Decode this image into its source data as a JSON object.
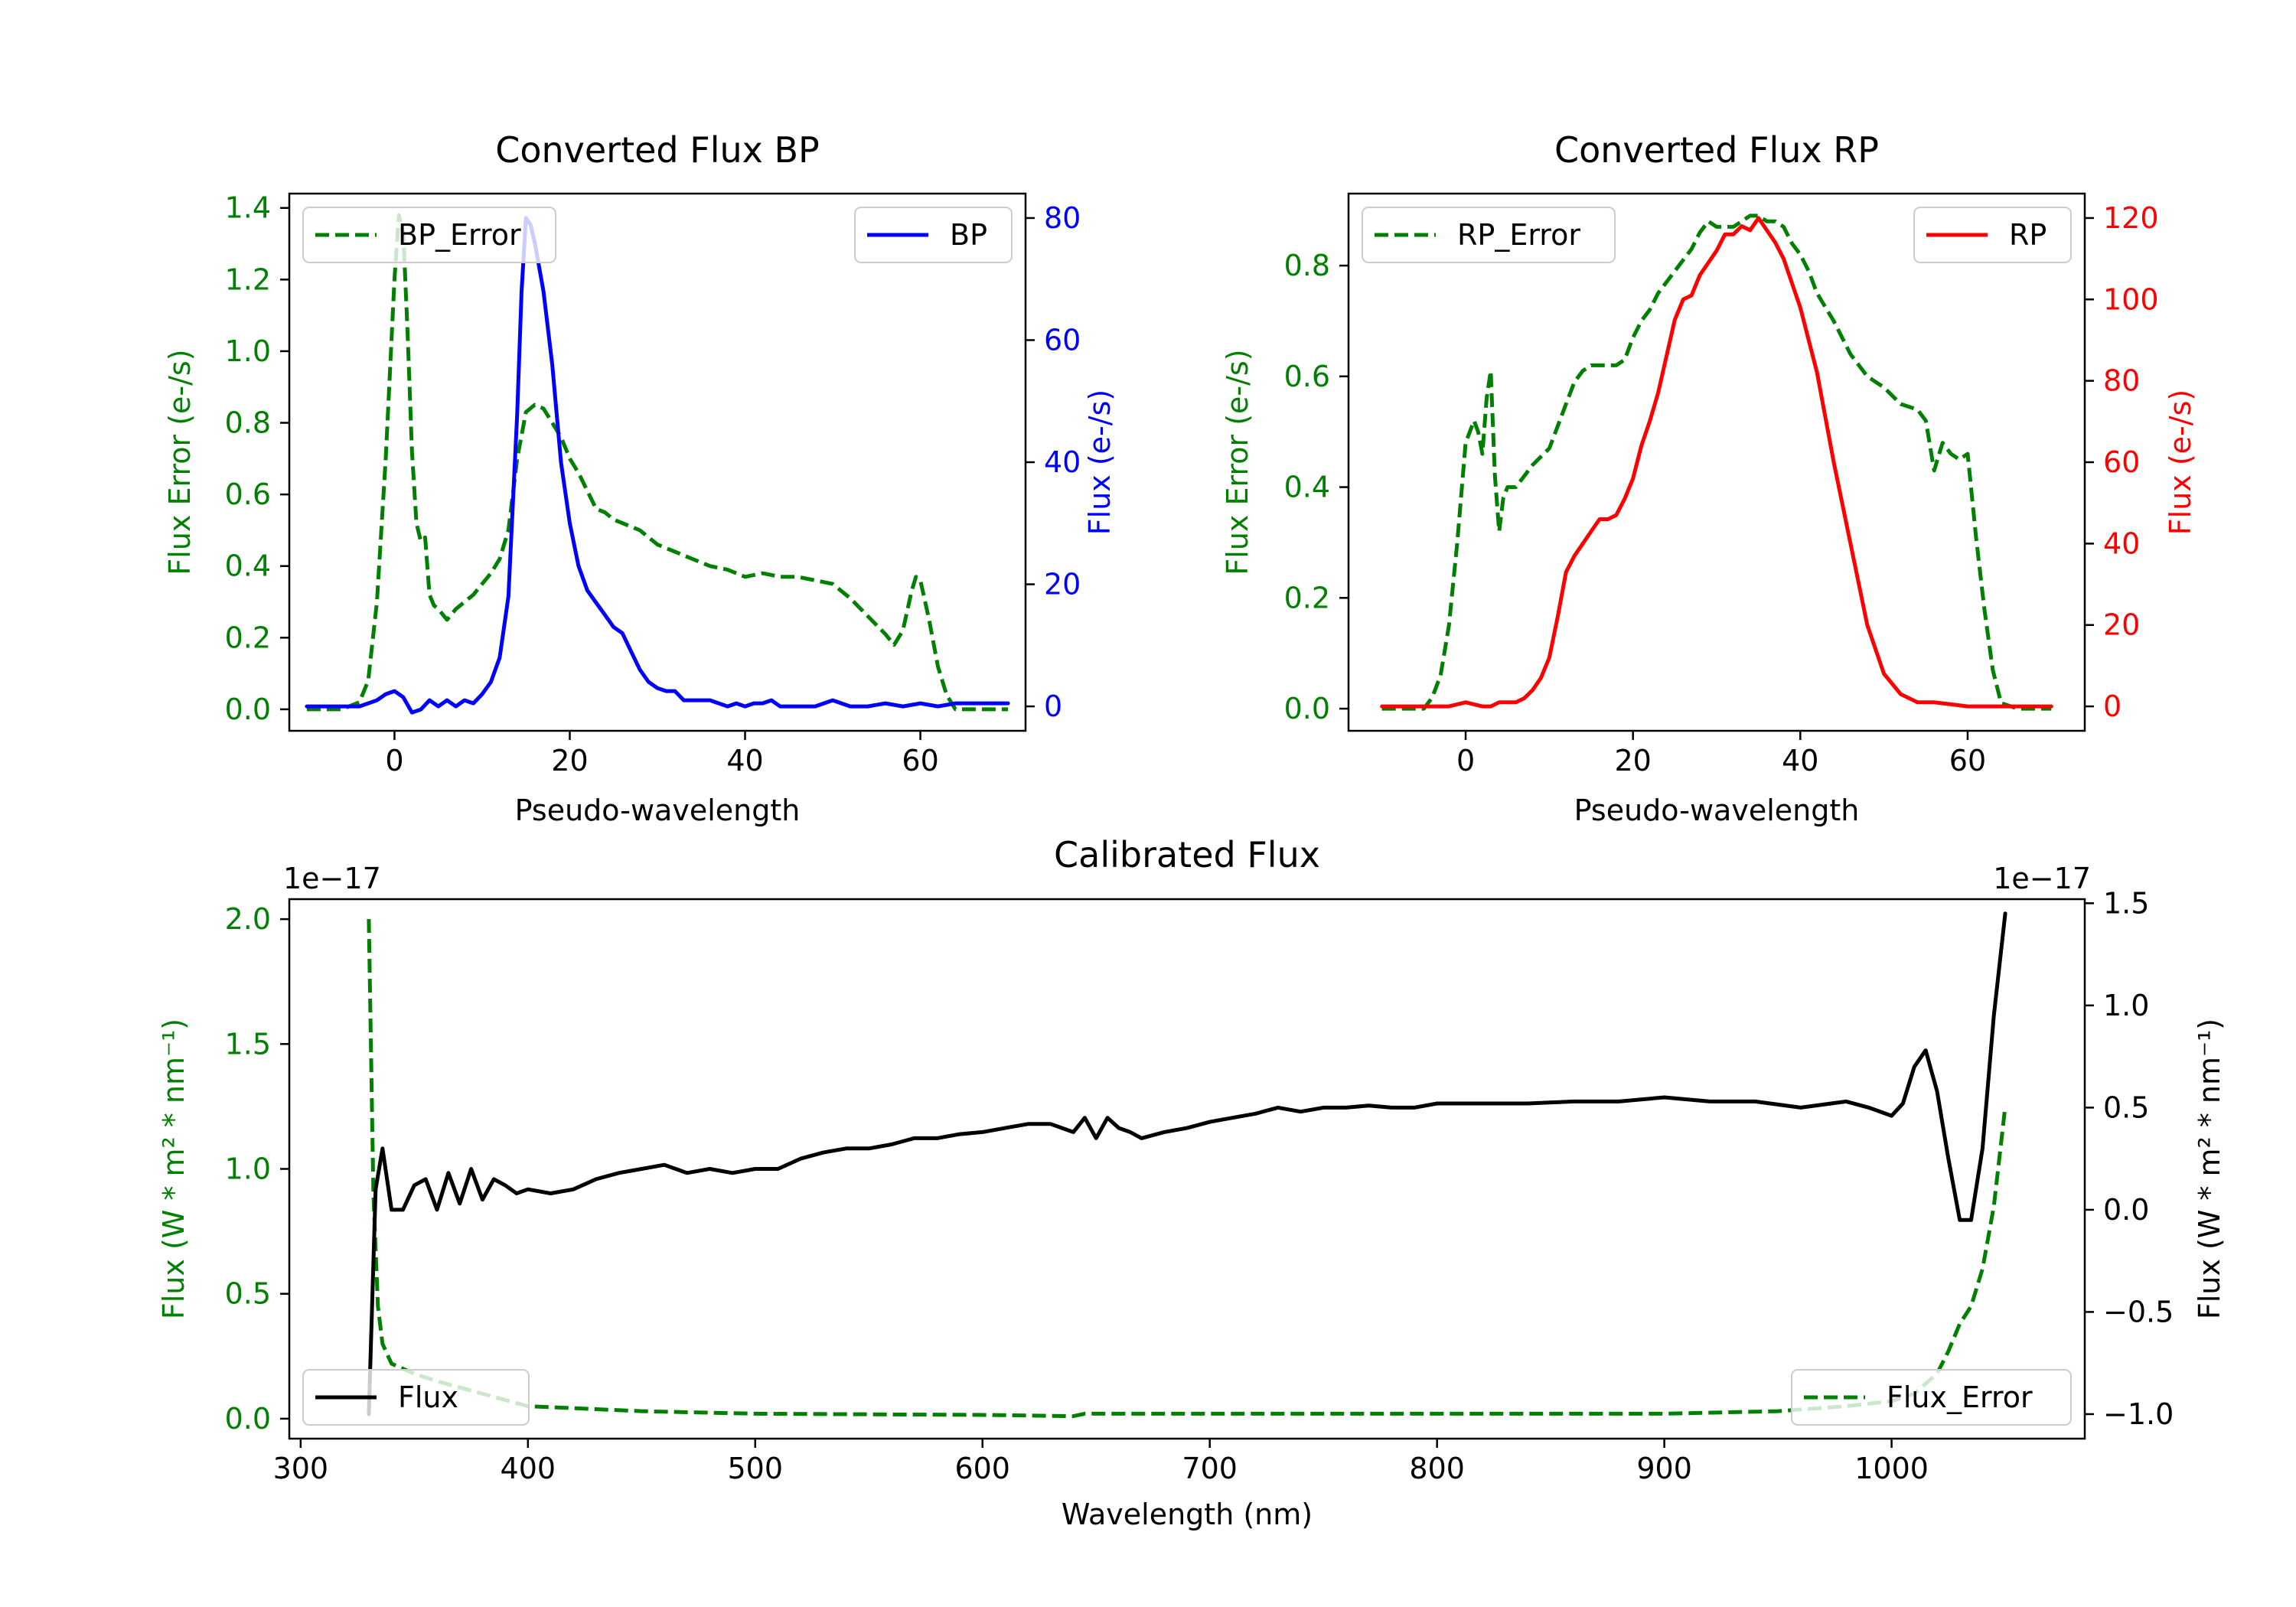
{
  "chart_data": [
    {
      "type": "line",
      "title": "Converted Flux BP",
      "xlabel": "Pseudo-wavelength",
      "ylabel_left": "Flux Error (e-/s)",
      "ylabel_right": "Flux (e-/s)",
      "xlim": [
        -12,
        72
      ],
      "ylim_left": [
        -0.06,
        1.44
      ],
      "ylim_right": [
        -4,
        84
      ],
      "xticks": [
        0,
        20,
        40,
        60
      ],
      "yticks_left": [
        0.0,
        0.2,
        0.4,
        0.6,
        0.8,
        1.0,
        1.2,
        1.4
      ],
      "yticks_right": [
        0,
        20,
        40,
        60,
        80
      ],
      "left_color": "#008000",
      "right_color": "#0000ff",
      "series": [
        {
          "name": "BP_Error",
          "axis": "left",
          "style": "dashed",
          "color": "#008000",
          "x": [
            -10,
            -6,
            -4,
            -3,
            -2,
            -1,
            0,
            0.5,
            1,
            1.5,
            2,
            2.5,
            3,
            3.5,
            4,
            4.5,
            5,
            6,
            7,
            8,
            9,
            10,
            11,
            12,
            13,
            14,
            15,
            16,
            17,
            18,
            19,
            20,
            21,
            22,
            23,
            24,
            25,
            26,
            28,
            30,
            32,
            34,
            36,
            38,
            40,
            42,
            44,
            46,
            48,
            50,
            52,
            54,
            56,
            57,
            58,
            59,
            59.5,
            60,
            61,
            62,
            63,
            64,
            66,
            70
          ],
          "y": [
            0.0,
            0.0,
            0.02,
            0.08,
            0.3,
            0.7,
            1.2,
            1.38,
            1.33,
            1.05,
            0.72,
            0.52,
            0.47,
            0.48,
            0.32,
            0.29,
            0.28,
            0.25,
            0.28,
            0.3,
            0.32,
            0.35,
            0.38,
            0.42,
            0.5,
            0.7,
            0.83,
            0.85,
            0.84,
            0.8,
            0.76,
            0.7,
            0.66,
            0.61,
            0.56,
            0.55,
            0.53,
            0.52,
            0.5,
            0.46,
            0.44,
            0.42,
            0.4,
            0.39,
            0.37,
            0.38,
            0.37,
            0.37,
            0.36,
            0.35,
            0.31,
            0.26,
            0.21,
            0.18,
            0.22,
            0.33,
            0.37,
            0.36,
            0.25,
            0.12,
            0.04,
            0.0,
            0.0,
            0.0
          ]
        },
        {
          "name": "BP",
          "axis": "right",
          "style": "solid",
          "color": "#0000ff",
          "x": [
            -10,
            -6,
            -4,
            -2,
            -1,
            0,
            1,
            2,
            3,
            4,
            5,
            6,
            7,
            8,
            9,
            10,
            11,
            12,
            13,
            14,
            14.5,
            15,
            15.5,
            16,
            16.5,
            17,
            18,
            19,
            20,
            21,
            22,
            23,
            24,
            25,
            26,
            27,
            28,
            29,
            30,
            31,
            32,
            33,
            34,
            36,
            38,
            39,
            40,
            41,
            42,
            43,
            44,
            46,
            48,
            50,
            52,
            54,
            56,
            58,
            60,
            62,
            64,
            66,
            68,
            70
          ],
          "y": [
            0,
            0,
            0,
            1,
            2,
            2.5,
            1.5,
            -1,
            -0.5,
            1,
            0,
            1,
            0,
            1,
            0.5,
            2,
            4,
            8,
            18,
            48,
            68,
            80,
            79,
            76,
            72,
            68,
            56,
            40,
            30,
            23,
            19,
            17,
            15,
            13,
            12,
            9,
            6,
            4,
            3,
            2.5,
            2.5,
            1,
            1,
            1,
            0,
            0.5,
            0,
            0.5,
            0.5,
            1,
            0,
            0,
            0,
            1,
            0,
            0,
            0.5,
            0,
            0.5,
            0,
            0.5,
            0.5,
            0.5,
            0.5
          ]
        }
      ],
      "legend": [
        {
          "label": "BP_Error",
          "placement": "upper left"
        },
        {
          "label": "BP",
          "placement": "upper right"
        }
      ]
    },
    {
      "type": "line",
      "title": "Converted Flux RP",
      "xlabel": "Pseudo-wavelength",
      "ylabel_left": "Flux Error (e-/s)",
      "ylabel_right": "Flux (e-/s)",
      "xlim": [
        -14,
        74
      ],
      "ylim_left": [
        -0.04,
        0.93
      ],
      "ylim_right": [
        -6,
        126
      ],
      "xticks": [
        0,
        20,
        40,
        60
      ],
      "yticks_left": [
        0.0,
        0.2,
        0.4,
        0.6,
        0.8
      ],
      "yticks_right": [
        0,
        20,
        40,
        60,
        80,
        100,
        120
      ],
      "left_color": "#008000",
      "right_color": "#ff0000",
      "series": [
        {
          "name": "RP_Error",
          "axis": "left",
          "style": "dashed",
          "color": "#008000",
          "x": [
            -10,
            -5,
            -4,
            -3,
            -2,
            -1,
            0,
            1,
            1.5,
            2,
            2.5,
            3,
            3.5,
            4,
            4.5,
            5,
            6,
            7,
            8,
            10,
            12,
            13,
            14,
            15,
            16,
            18,
            19,
            20,
            21,
            22,
            23,
            24,
            25,
            26,
            27,
            28,
            29,
            30,
            32,
            33,
            34,
            35,
            36,
            37,
            38,
            39,
            40,
            41,
            42,
            44,
            46,
            48,
            50,
            52,
            54,
            55,
            56,
            57,
            58,
            59,
            60,
            61,
            62,
            63,
            64,
            66,
            70
          ],
          "y": [
            0,
            0,
            0.02,
            0.06,
            0.15,
            0.3,
            0.48,
            0.52,
            0.5,
            0.46,
            0.56,
            0.61,
            0.42,
            0.32,
            0.38,
            0.4,
            0.4,
            0.42,
            0.44,
            0.47,
            0.55,
            0.59,
            0.61,
            0.62,
            0.62,
            0.62,
            0.63,
            0.67,
            0.7,
            0.72,
            0.75,
            0.77,
            0.79,
            0.81,
            0.83,
            0.86,
            0.88,
            0.87,
            0.87,
            0.88,
            0.89,
            0.89,
            0.88,
            0.88,
            0.87,
            0.84,
            0.82,
            0.79,
            0.75,
            0.7,
            0.64,
            0.6,
            0.58,
            0.55,
            0.54,
            0.52,
            0.43,
            0.48,
            0.46,
            0.45,
            0.46,
            0.31,
            0.18,
            0.07,
            0.01,
            0,
            0
          ]
        },
        {
          "name": "RP",
          "axis": "right",
          "style": "solid",
          "color": "#ff0000",
          "x": [
            -10,
            -4,
            -2,
            0,
            1,
            2,
            3,
            4,
            5,
            6,
            7,
            8,
            9,
            10,
            11,
            12,
            13,
            14,
            15,
            16,
            17,
            18,
            19,
            20,
            21,
            22,
            23,
            24,
            25,
            26,
            27,
            28,
            29,
            30,
            31,
            32,
            33,
            34,
            35,
            36,
            37,
            38,
            40,
            42,
            44,
            46,
            48,
            50,
            52,
            54,
            56,
            58,
            60,
            62,
            64,
            66,
            70
          ],
          "y": [
            0,
            0,
            0,
            1,
            0.5,
            0,
            0,
            1,
            1,
            1,
            2,
            4,
            7,
            12,
            22,
            33,
            37,
            40,
            43,
            46,
            46,
            47,
            51,
            56,
            64,
            70,
            77,
            86,
            95,
            100,
            101,
            106,
            109,
            112,
            116,
            116,
            118,
            117,
            120,
            117,
            114,
            110,
            98,
            82,
            60,
            40,
            20,
            8,
            3,
            1,
            1,
            0.5,
            0,
            0,
            0,
            0,
            0
          ]
        }
      ],
      "legend": [
        {
          "label": "RP_Error",
          "placement": "upper left"
        },
        {
          "label": "RP",
          "placement": "upper right"
        }
      ]
    },
    {
      "type": "line",
      "title": "Calibrated Flux",
      "xlabel": "Wavelength (nm)",
      "ylabel_left": "Flux (W * m² * nm⁻¹)",
      "ylabel_right": "Flux (W * m² * nm⁻¹)",
      "offset_left": "1e−17",
      "offset_right": "1e−17",
      "xlim": [
        295,
        1085
      ],
      "ylim_left": [
        -0.08,
        2.08
      ],
      "ylim_right": [
        -1.12,
        1.52
      ],
      "xticks": [
        300,
        400,
        500,
        600,
        700,
        800,
        900,
        1000
      ],
      "yticks_left": [
        0.0,
        0.5,
        1.0,
        1.5,
        2.0
      ],
      "yticks_left_labels": [
        "0.0",
        "0.5",
        "1.0",
        "1.5",
        "2.0"
      ],
      "yticks_right": [
        -1.0,
        -0.5,
        0.0,
        0.5,
        1.0,
        1.5
      ],
      "yticks_right_labels": [
        "−1.0",
        "−0.5",
        "0.0",
        "0.5",
        "1.0",
        "1.5"
      ],
      "left_color": "#008000",
      "right_color": "#000000",
      "series": [
        {
          "name": "Flux_Error",
          "axis": "left",
          "style": "dashed",
          "color": "#008000",
          "x": [
            330,
            332,
            334,
            336,
            340,
            350,
            360,
            380,
            400,
            450,
            500,
            600,
            640,
            645,
            700,
            800,
            900,
            950,
            980,
            1000,
            1010,
            1020,
            1025,
            1030,
            1035,
            1040,
            1045,
            1050
          ],
          "y": [
            2.0,
            0.9,
            0.45,
            0.3,
            0.22,
            0.18,
            0.15,
            0.1,
            0.05,
            0.03,
            0.02,
            0.015,
            0.01,
            0.02,
            0.02,
            0.02,
            0.02,
            0.03,
            0.05,
            0.07,
            0.1,
            0.18,
            0.27,
            0.38,
            0.45,
            0.6,
            0.85,
            1.25
          ]
        },
        {
          "name": "Flux",
          "axis": "right",
          "style": "solid",
          "color": "#000000",
          "x": [
            330,
            333,
            336,
            340,
            345,
            350,
            355,
            360,
            365,
            370,
            375,
            380,
            385,
            390,
            395,
            400,
            410,
            420,
            430,
            440,
            450,
            460,
            470,
            480,
            490,
            500,
            510,
            520,
            530,
            540,
            550,
            560,
            570,
            580,
            590,
            600,
            610,
            620,
            630,
            640,
            645,
            650,
            655,
            660,
            665,
            670,
            680,
            690,
            700,
            710,
            720,
            730,
            740,
            750,
            760,
            770,
            780,
            790,
            800,
            820,
            840,
            860,
            880,
            900,
            920,
            940,
            960,
            980,
            990,
            1000,
            1005,
            1010,
            1015,
            1020,
            1025,
            1030,
            1035,
            1040,
            1045,
            1050
          ],
          "y": [
            -1.0,
            0.1,
            0.3,
            0.0,
            0.0,
            0.12,
            0.15,
            0.0,
            0.18,
            0.03,
            0.2,
            0.05,
            0.15,
            0.12,
            0.08,
            0.1,
            0.08,
            0.1,
            0.15,
            0.18,
            0.2,
            0.22,
            0.18,
            0.2,
            0.18,
            0.2,
            0.2,
            0.25,
            0.28,
            0.3,
            0.3,
            0.32,
            0.35,
            0.35,
            0.37,
            0.38,
            0.4,
            0.42,
            0.42,
            0.38,
            0.45,
            0.35,
            0.45,
            0.4,
            0.38,
            0.35,
            0.38,
            0.4,
            0.43,
            0.45,
            0.47,
            0.5,
            0.48,
            0.5,
            0.5,
            0.51,
            0.5,
            0.5,
            0.52,
            0.52,
            0.52,
            0.53,
            0.53,
            0.55,
            0.53,
            0.53,
            0.5,
            0.53,
            0.5,
            0.46,
            0.52,
            0.7,
            0.78,
            0.58,
            0.25,
            -0.05,
            -0.05,
            0.3,
            0.95,
            1.45
          ]
        }
      ],
      "legend": [
        {
          "label": "Flux",
          "placement": "lower left"
        },
        {
          "label": "Flux_Error",
          "placement": "lower right"
        }
      ]
    }
  ]
}
